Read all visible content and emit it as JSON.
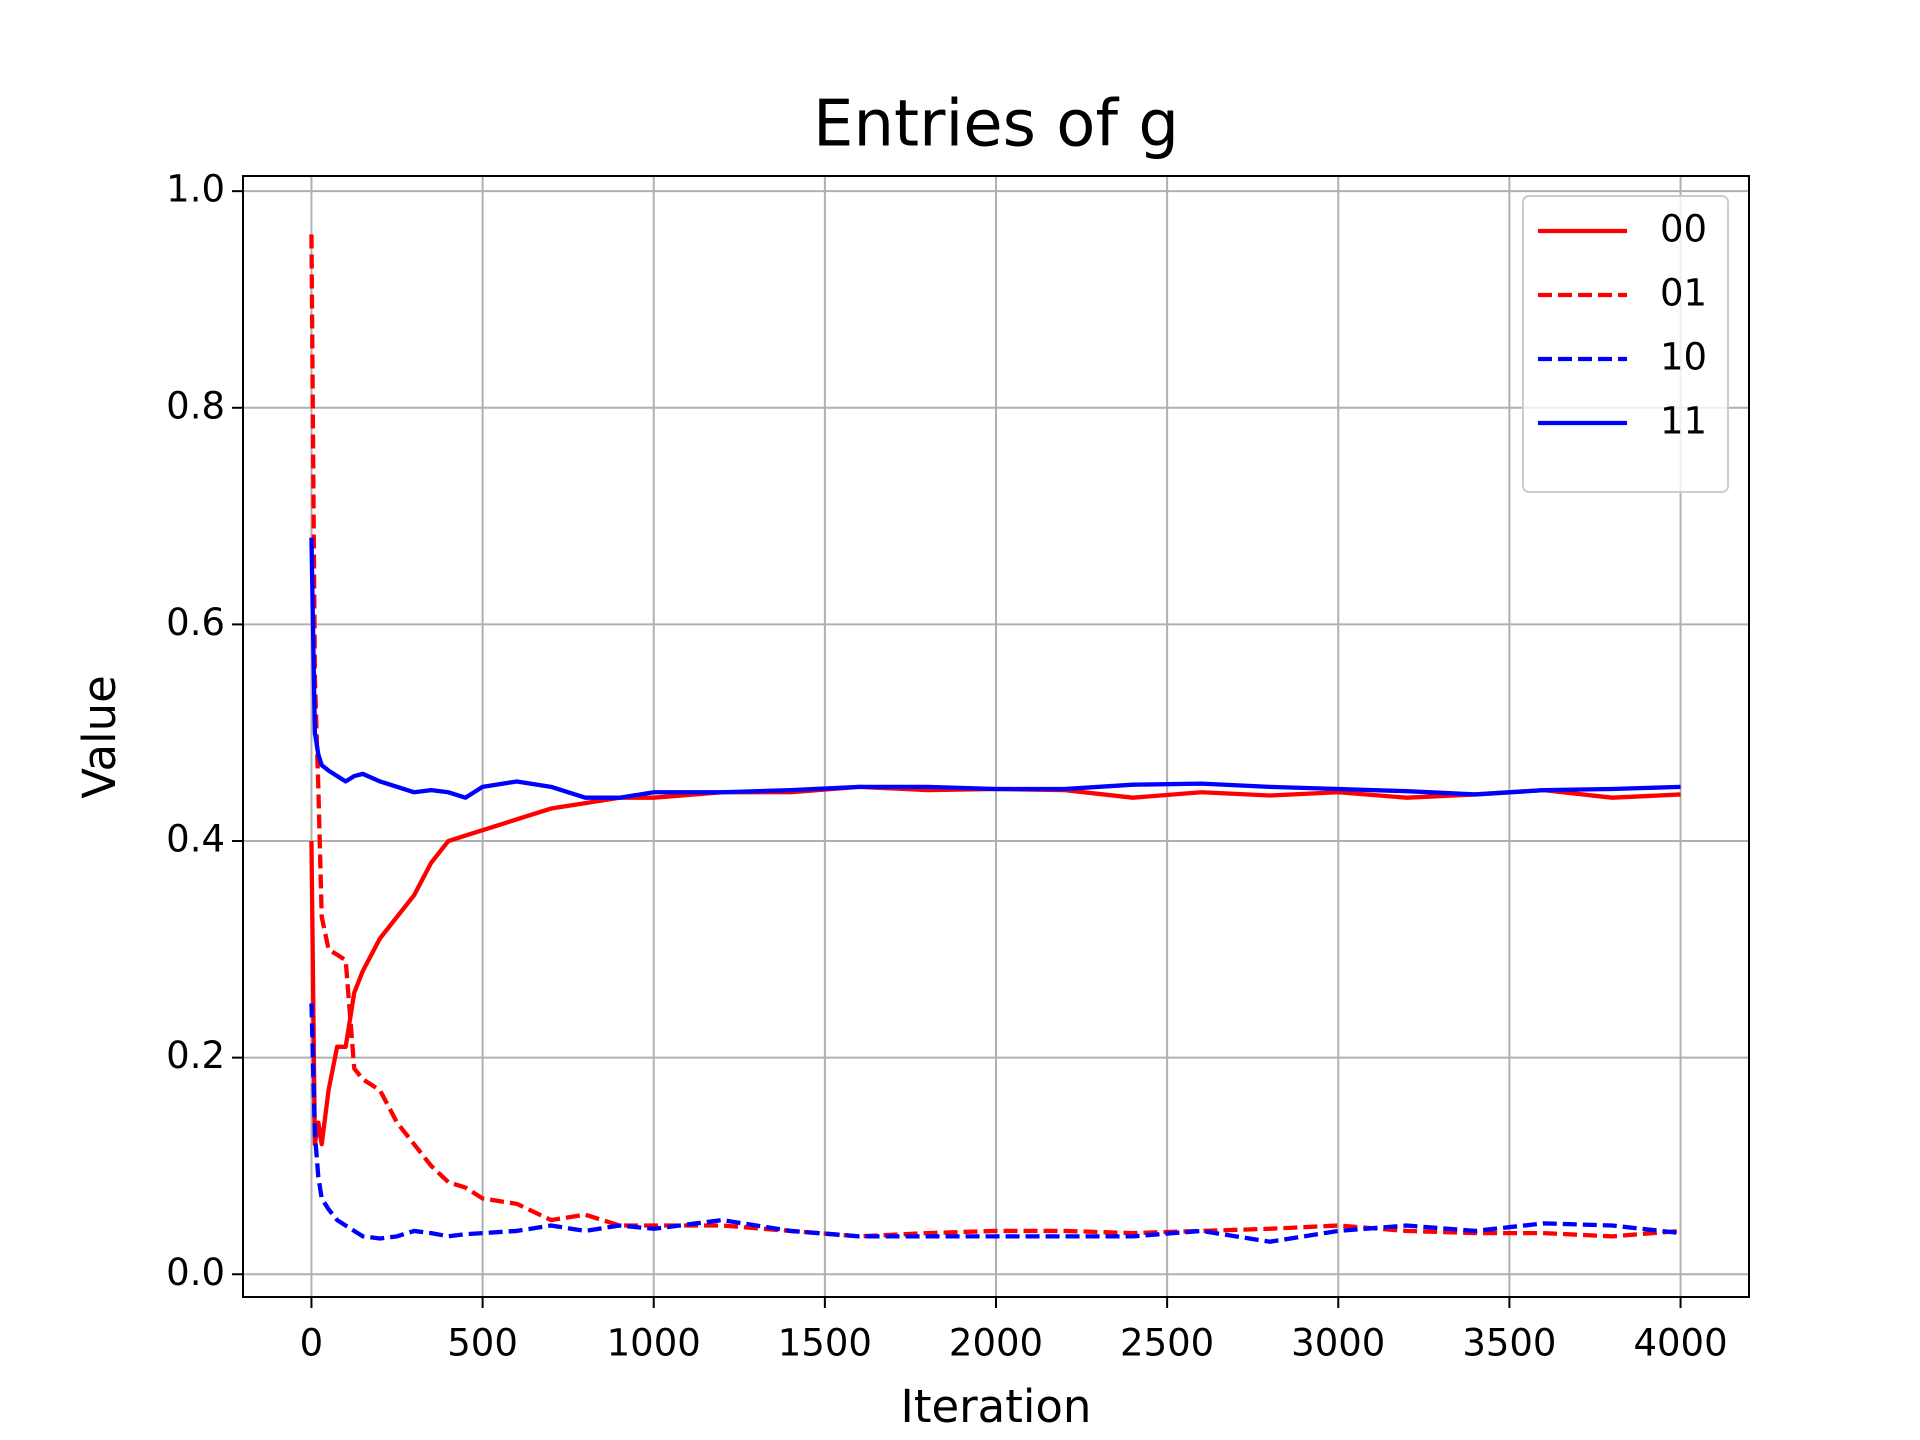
{
  "chart_data": {
    "type": "line",
    "title": "Entries of g",
    "x_label": "Iteration",
    "y_label": "Value",
    "x": [
      0,
      10,
      20,
      30,
      50,
      75,
      100,
      125,
      150,
      200,
      250,
      300,
      350,
      400,
      450,
      500,
      600,
      700,
      800,
      900,
      1000,
      1200,
      1400,
      1600,
      1800,
      2000,
      2200,
      2400,
      2600,
      2800,
      3000,
      3200,
      3400,
      3600,
      3800,
      4000
    ],
    "series": [
      {
        "name": "00",
        "color": "#ff0000",
        "linestyle": "solid",
        "values": [
          0.4,
          0.12,
          0.14,
          0.12,
          0.17,
          0.21,
          0.21,
          0.26,
          0.28,
          0.31,
          0.33,
          0.35,
          0.38,
          0.4,
          0.405,
          0.41,
          0.42,
          0.43,
          0.435,
          0.44,
          0.44,
          0.445,
          0.445,
          0.45,
          0.447,
          0.448,
          0.447,
          0.44,
          0.445,
          0.442,
          0.445,
          0.44,
          0.443,
          0.447,
          0.44,
          0.443
        ]
      },
      {
        "name": "01",
        "color": "#ff0000",
        "linestyle": "dashed",
        "values": [
          0.96,
          0.55,
          0.45,
          0.33,
          0.3,
          0.295,
          0.29,
          0.19,
          0.18,
          0.17,
          0.14,
          0.12,
          0.1,
          0.085,
          0.08,
          0.07,
          0.065,
          0.05,
          0.055,
          0.045,
          0.045,
          0.045,
          0.04,
          0.035,
          0.038,
          0.04,
          0.04,
          0.038,
          0.04,
          0.042,
          0.045,
          0.04,
          0.038,
          0.038,
          0.035,
          0.04
        ]
      },
      {
        "name": "10",
        "color": "#0000ff",
        "linestyle": "dashed",
        "values": [
          0.25,
          0.13,
          0.09,
          0.07,
          0.06,
          0.05,
          0.045,
          0.04,
          0.035,
          0.033,
          0.035,
          0.04,
          0.038,
          0.035,
          0.037,
          0.038,
          0.04,
          0.045,
          0.04,
          0.045,
          0.042,
          0.05,
          0.04,
          0.035,
          0.035,
          0.035,
          0.035,
          0.035,
          0.04,
          0.03,
          0.04,
          0.045,
          0.04,
          0.047,
          0.045,
          0.038
        ]
      },
      {
        "name": "11",
        "color": "#0000ff",
        "linestyle": "solid",
        "values": [
          0.68,
          0.5,
          0.48,
          0.47,
          0.465,
          0.46,
          0.455,
          0.46,
          0.462,
          0.455,
          0.45,
          0.445,
          0.447,
          0.445,
          0.44,
          0.45,
          0.455,
          0.45,
          0.44,
          0.44,
          0.445,
          0.445,
          0.447,
          0.45,
          0.45,
          0.448,
          0.448,
          0.452,
          0.453,
          0.45,
          0.448,
          0.446,
          0.443,
          0.447,
          0.448,
          0.45
        ]
      }
    ],
    "xlim": [
      -200,
      4200
    ],
    "xticks": [
      0,
      500,
      1000,
      1500,
      2000,
      2500,
      3000,
      3500,
      4000
    ],
    "ylim": [
      -0.021,
      1.014
    ],
    "yticks": [
      {
        "value": 0,
        "label": "0.0"
      },
      0.2,
      0.4,
      0.6,
      0.8,
      {
        "value": 1,
        "label": "1.0"
      }
    ],
    "grid": true,
    "legend": "upper right"
  }
}
